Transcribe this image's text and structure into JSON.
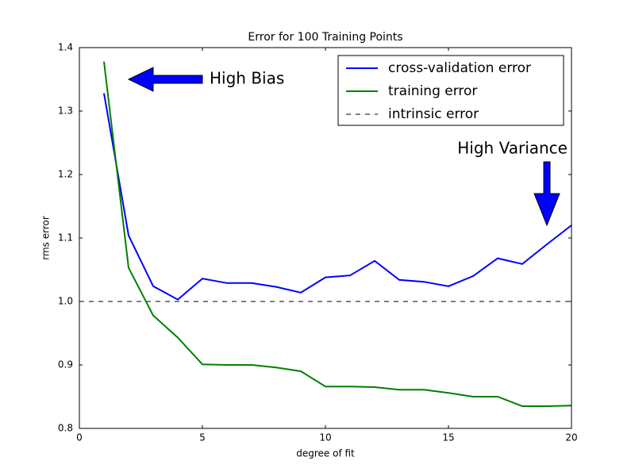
{
  "chart_data": {
    "type": "line",
    "title": "Error for 100 Training Points",
    "x_label": "degree of fit",
    "y_label": "rms error",
    "x": [
      1,
      2,
      3,
      4,
      5,
      6,
      7,
      8,
      9,
      10,
      11,
      12,
      13,
      14,
      15,
      16,
      17,
      18,
      19,
      20
    ],
    "series": [
      {
        "name": "cross-validation error",
        "color": "#0000ff",
        "values": [
          1.328,
          1.104,
          1.024,
          1.003,
          1.036,
          1.029,
          1.029,
          1.023,
          1.014,
          1.038,
          1.041,
          1.064,
          1.034,
          1.031,
          1.024,
          1.04,
          1.068,
          1.059,
          1.09,
          1.12
        ]
      },
      {
        "name": "training error",
        "color": "#008000",
        "values": [
          1.378,
          1.053,
          0.978,
          0.943,
          0.901,
          0.9,
          0.9,
          0.896,
          0.89,
          0.866,
          0.866,
          0.865,
          0.861,
          0.861,
          0.856,
          0.85,
          0.85,
          0.835,
          0.835,
          0.836
        ]
      }
    ],
    "hline": {
      "name": "intrinsic error",
      "color": "#000000",
      "value": 1,
      "dashed": true
    },
    "annotations": [
      "High Bias",
      "High Variance"
    ],
    "xlim": [
      0,
      20
    ],
    "ylim": [
      0.8,
      1.4
    ],
    "xticks": [
      0,
      5,
      10,
      15,
      20
    ],
    "yticks": [
      0.8,
      0.9,
      {
        "value": 1,
        "label": "1.0"
      },
      1.1,
      1.2,
      1.3,
      1.4
    ],
    "grid": false,
    "legend": "upper right"
  }
}
